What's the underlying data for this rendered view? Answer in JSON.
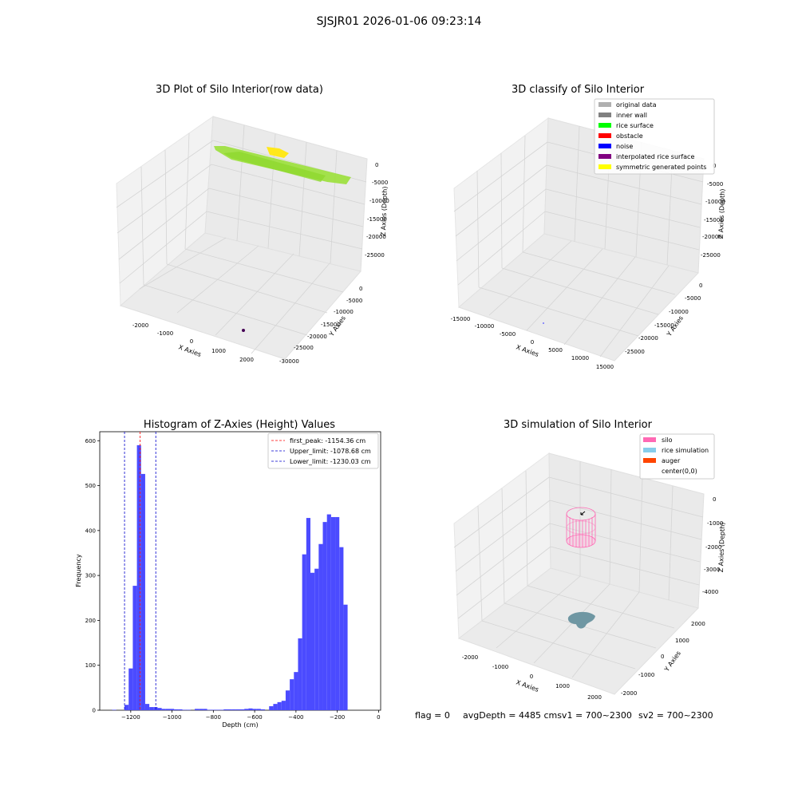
{
  "suptitle": "SJSJR01 2026-01-06 09:23:14",
  "footer": {
    "flag": "flag = 0",
    "avg": "avgDepth = 4485 cmsv1 = 700~2300",
    "sv2": "sv2 = 700~2300"
  },
  "colors": {
    "hist": "#4b4bff",
    "peak": "#ff0000",
    "limit": "#0000cc",
    "silo": "#ff69b4",
    "rice": "#6f97a3",
    "raw_green": "#9be03a",
    "raw_yellow": "#ffe81a"
  },
  "panel1": {
    "title": "3D Plot of Silo Interior(row data)",
    "xlabel": "X Axies",
    "ylabel": "Y Axies",
    "zlabel": "Z Axies (Depth)",
    "xticks": [
      "-2000",
      "-1000",
      "0",
      "1000",
      "2000"
    ],
    "yticks": [
      "0",
      "-5000",
      "-10000",
      "-15000",
      "-20000",
      "-25000",
      "-30000"
    ],
    "zticks": [
      "0",
      "-5000",
      "-10000",
      "-15000",
      "-20000",
      "-25000"
    ]
  },
  "panel2": {
    "title": "3D classify of Silo Interior",
    "xlabel": "X Axies",
    "ylabel": "Y Axies",
    "zlabel": "Z Axies (Depth)",
    "xticks": [
      "-15000",
      "-10000",
      "-5000",
      "0",
      "5000",
      "10000",
      "15000"
    ],
    "yticks": [
      "0",
      "-5000",
      "-10000",
      "-15000",
      "-20000",
      "-25000"
    ],
    "zticks": [
      "0",
      "-5000",
      "-10000",
      "-15000",
      "-20000",
      "-25000"
    ],
    "legend": [
      {
        "label": "original data",
        "color": "#b0b0b0"
      },
      {
        "label": "inner wall",
        "color": "#808080"
      },
      {
        "label": "rice surface",
        "color": "#00ff00"
      },
      {
        "label": "obstacle",
        "color": "#ff0000"
      },
      {
        "label": "noise",
        "color": "#0000ff"
      },
      {
        "label": "interpolated rice surface",
        "color": "#800080"
      },
      {
        "label": "symmetric generated points",
        "color": "#ffff00"
      }
    ]
  },
  "panel4": {
    "title": "3D simulation of Silo Interior",
    "xlabel": "X Axies",
    "ylabel": "Y Axies",
    "zlabel": "Z Axies (Depth)",
    "xticks": [
      "-2000",
      "-1000",
      "0",
      "1000",
      "2000"
    ],
    "yticks": [
      "2000",
      "1000",
      "0",
      "-1000",
      "-2000"
    ],
    "zticks": [
      "0",
      "-1000",
      "-2000",
      "-3000",
      "-4000"
    ],
    "legend": [
      {
        "label": "silo",
        "color": "#ff69b4"
      },
      {
        "label": "rice simulation",
        "color": "#87ceeb"
      },
      {
        "label": "auger",
        "color": "#ff4500"
      },
      {
        "label": "center(0,0)",
        "color": ""
      }
    ]
  },
  "chart_data": [
    {
      "type": "histogram",
      "title": "Histogram of Z-Axies (Height) Values",
      "xlabel": "Depth (cm)",
      "ylabel": "Frequency",
      "xlim": [
        -1350,
        10
      ],
      "ylim": [
        0,
        620
      ],
      "xticks": [
        -1200,
        -1000,
        -800,
        -600,
        -400,
        -200,
        0
      ],
      "yticks": [
        0,
        100,
        200,
        300,
        400,
        500,
        600
      ],
      "bin_width": 20,
      "bin_starts": [
        -1290,
        -1270,
        -1250,
        -1230,
        -1210,
        -1190,
        -1170,
        -1150,
        -1130,
        -1110,
        -1090,
        -1070,
        -1050,
        -1030,
        -1010,
        -990,
        -970,
        -950,
        -930,
        -910,
        -890,
        -870,
        -850,
        -830,
        -810,
        -790,
        -770,
        -750,
        -730,
        -710,
        -690,
        -670,
        -650,
        -630,
        -610,
        -590,
        -570,
        -550,
        -530,
        -510,
        -490,
        -470,
        -450,
        -430,
        -410,
        -390,
        -370,
        -350,
        -330,
        -310,
        -290,
        -270,
        -250,
        -230,
        -210,
        -190,
        -170,
        -150,
        -130,
        -110,
        -90,
        -70
      ],
      "values": [
        1,
        0,
        0,
        12,
        93,
        277,
        590,
        526,
        14,
        7,
        7,
        5,
        3,
        3,
        3,
        2,
        2,
        1,
        1,
        0,
        3,
        3,
        3,
        1,
        1,
        1,
        1,
        2,
        2,
        2,
        2,
        2,
        3,
        4,
        3,
        3,
        2,
        0,
        9,
        14,
        18,
        21,
        44,
        69,
        85,
        160,
        347,
        428,
        306,
        315,
        370,
        419,
        436,
        430,
        430,
        363,
        235,
        0,
        0,
        0,
        0,
        0
      ],
      "lines": [
        {
          "label": "first_peak: -1154.36 cm",
          "x": -1154.36,
          "style": "red"
        },
        {
          "label": "Upper_limit: -1078.68 cm",
          "x": -1078.68,
          "style": "blue"
        },
        {
          "label": "Lower_limit: -1230.03 cm",
          "x": -1230.03,
          "style": "blue"
        }
      ],
      "legend_position": "top-right"
    }
  ]
}
